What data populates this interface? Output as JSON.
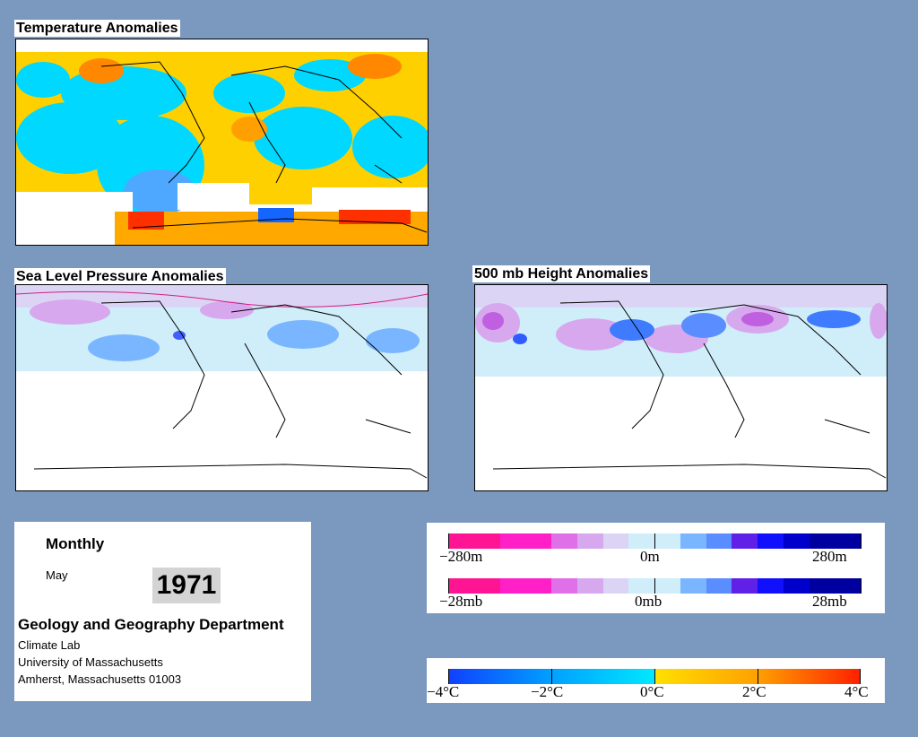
{
  "maps": {
    "temperature": {
      "title": "Temperature Anomalies"
    },
    "slp": {
      "title": "Sea Level Pressure Anomalies"
    },
    "height500": {
      "title": "500 mb Height Anomalies"
    }
  },
  "info": {
    "period": "Monthly",
    "month": "May",
    "year": "1971",
    "department": "Geology and Geography Department",
    "lab": "Climate Lab",
    "university": "University of Massachusetts",
    "address": "Amherst, Massachusetts 01003"
  },
  "legends": {
    "height": {
      "left": "−280m",
      "center": "0m",
      "right": "280m"
    },
    "pressure": {
      "left": "−28mb",
      "center": "0mb",
      "right": "28mb"
    },
    "temperature": {
      "labels": [
        "−4°C",
        "−2°C",
        "0°C",
        "2°C",
        "4°C"
      ]
    }
  },
  "colors": {
    "background": "#7b98bf",
    "anomaly_positive_height": "#ff1493",
    "anomaly_negative_height": "#0000cd",
    "temp_cold": "#1565ff",
    "temp_warm": "#ff3000",
    "temp_neutral_cold": "#00e0ff",
    "temp_neutral_warm": "#ffe000"
  }
}
